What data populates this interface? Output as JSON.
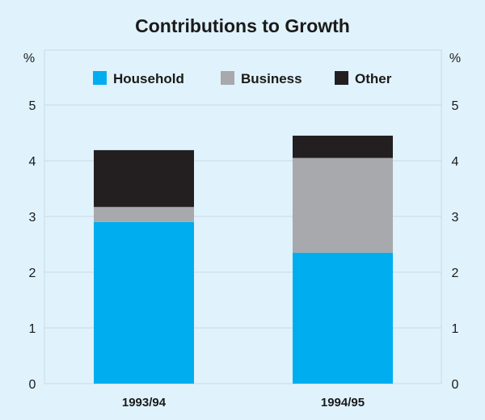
{
  "chart_data": {
    "type": "bar",
    "stacked": true,
    "title": "Contributions to Growth",
    "ylabel_left": "%",
    "ylabel_right": "%",
    "ylim": [
      0,
      6
    ],
    "yticks": [
      0,
      1,
      2,
      3,
      4,
      5
    ],
    "grid": true,
    "legend_position": "top",
    "categories": [
      "1993/94",
      "1994/95"
    ],
    "series": [
      {
        "name": "Household",
        "color": "#00aeef",
        "values": [
          2.9,
          2.35
        ]
      },
      {
        "name": "Business",
        "color": "#a7a9ac",
        "values": [
          0.27,
          1.7
        ]
      },
      {
        "name": "Other",
        "color": "#231f20",
        "values": [
          1.02,
          0.4
        ]
      }
    ]
  }
}
